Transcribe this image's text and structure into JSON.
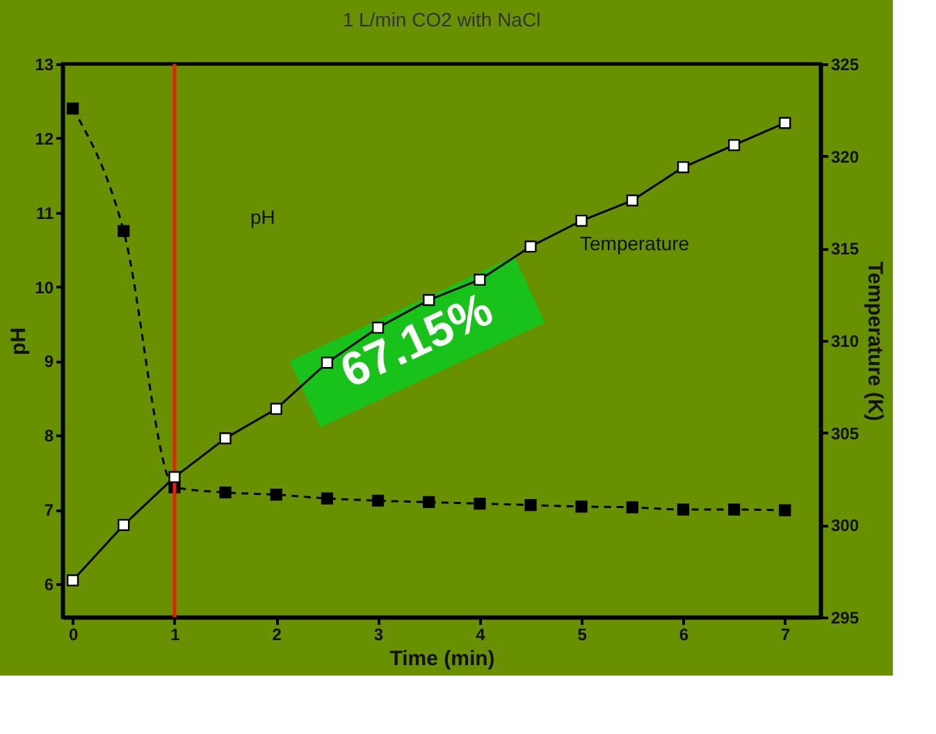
{
  "chart_data": {
    "type": "line",
    "title": "1 L/min CO2 with NaCl",
    "xlabel": "Time (min)",
    "ylabel": "pH",
    "y2label": "Temperature (K)",
    "x": [
      0,
      0.5,
      1,
      1.5,
      2,
      2.5,
      3,
      3.5,
      4,
      4.5,
      5,
      5.5,
      6,
      6.5,
      7
    ],
    "series": [
      {
        "color": "#000000",
        "line_style": "dashed",
        "values": [
          12.4,
          10.75,
          7.3,
          7.23,
          7.2,
          7.15,
          7.12,
          7.1,
          7.08,
          7.06,
          7.04,
          7.03,
          7.0,
          7.0,
          6.99
        ]
      },
      {
        "color": "#000000",
        "line_style": "solid",
        "axis": "y2",
        "values": [
          297,
          300,
          302.6,
          304.7,
          306.3,
          308.8,
          310.7,
          312.2,
          313.3,
          315.1,
          316.5,
          317.6,
          319.4,
          320.6,
          321.8
        ]
      }
    ],
    "marker": "square",
    "xlim": [
      -0.1,
      7.35
    ],
    "xticks": [
      0,
      1,
      2,
      3,
      4,
      5,
      6,
      7
    ],
    "ylim": [
      5.55,
      13
    ],
    "yticks": [
      6,
      7,
      8,
      9,
      10,
      11,
      12,
      13
    ],
    "y2lim": [
      295,
      325
    ],
    "y2ticks": [
      295,
      300,
      305,
      310,
      315,
      320,
      325
    ],
    "ref_lines": [
      {
        "axis": "x",
        "value": 1,
        "color": "#e8200c"
      }
    ],
    "annotations": [
      "pH",
      "Temperature",
      "67.15%"
    ],
    "grid": false
  }
}
